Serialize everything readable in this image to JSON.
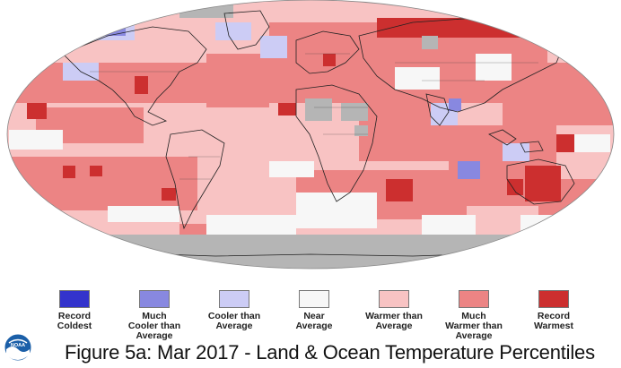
{
  "figure": {
    "caption": "Figure 5a: Mar 2017 - Land & Ocean Temperature Percentiles"
  },
  "colors": {
    "record_coldest": "#3333cc",
    "much_cooler": "#8888e0",
    "cooler": "#ccccf5",
    "near_average": "#f7f7f7",
    "warmer": "#f8c3c3",
    "much_warmer": "#ec8484",
    "record_warmest": "#cc2f2f",
    "no_data": "#b5b5b5"
  },
  "legend": {
    "items": [
      {
        "label_1": "Record",
        "label_2": "Coldest",
        "label_3": "",
        "color": "#3333cc"
      },
      {
        "label_1": "Much",
        "label_2": "Cooler than",
        "label_3": "Average",
        "color": "#8888e0"
      },
      {
        "label_1": "Cooler than",
        "label_2": "Average",
        "label_3": "",
        "color": "#ccccf5"
      },
      {
        "label_1": "Near",
        "label_2": "Average",
        "label_3": "",
        "color": "#f7f7f7"
      },
      {
        "label_1": "Warmer than",
        "label_2": "Average",
        "label_3": "",
        "color": "#f8c3c3"
      },
      {
        "label_1": "Much",
        "label_2": "Warmer than",
        "label_3": "Average",
        "color": "#ec8484"
      },
      {
        "label_1": "Record",
        "label_2": "Warmest",
        "label_3": "",
        "color": "#cc2f2f"
      }
    ]
  },
  "logo": {
    "text": "NOAA"
  }
}
